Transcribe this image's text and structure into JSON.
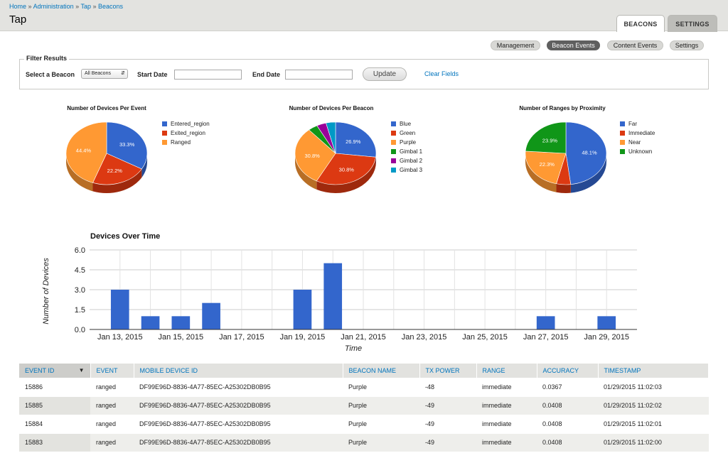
{
  "breadcrumb": {
    "items": [
      "Home",
      "Administration",
      "Tap",
      "Beacons"
    ],
    "sep": "»"
  },
  "page_title": "Tap",
  "tabs": [
    {
      "label": "BEACONS",
      "active": true
    },
    {
      "label": "SETTINGS",
      "active": false
    }
  ],
  "subnav": [
    {
      "label": "Management",
      "active": false
    },
    {
      "label": "Beacon Events",
      "active": true
    },
    {
      "label": "Content Events",
      "active": false
    },
    {
      "label": "Settings",
      "active": false
    }
  ],
  "filter": {
    "legend": "Filter Results",
    "beacon_label": "Select a Beacon",
    "beacon_value": "All Beacons",
    "start_label": "Start Date",
    "end_label": "End Date",
    "update_label": "Update",
    "clear_label": "Clear Fields"
  },
  "chart_data": [
    {
      "type": "pie",
      "title": "Number of Devices Per Event",
      "slices": [
        {
          "label": "Entered_region",
          "value": 33.3,
          "display": "33.3%",
          "color": "#3366cc"
        },
        {
          "label": "Exited_region",
          "value": 22.2,
          "display": "22.2%",
          "color": "#dc3912"
        },
        {
          "label": "Ranged",
          "value": 44.4,
          "display": "44.4%",
          "color": "#ff9933"
        }
      ]
    },
    {
      "type": "pie",
      "title": "Number of Devices Per Beacon",
      "slices": [
        {
          "label": "Blue",
          "value": 26.9,
          "display": "26.9%",
          "color": "#3366cc"
        },
        {
          "label": "Green",
          "value": 30.8,
          "display": "30.8%",
          "color": "#dc3912"
        },
        {
          "label": "Purple",
          "value": 30.8,
          "display": "30.8%",
          "color": "#ff9933"
        },
        {
          "label": "Gimbal 1",
          "value": 3.8,
          "display": "",
          "color": "#109618"
        },
        {
          "label": "Gimbal 2",
          "value": 3.8,
          "display": "",
          "color": "#990099"
        },
        {
          "label": "Gimbal 3",
          "value": 3.8,
          "display": "",
          "color": "#0099c6"
        }
      ]
    },
    {
      "type": "pie",
      "title": "Number of Ranges by Proximity",
      "slices": [
        {
          "label": "Far",
          "value": 48.1,
          "display": "48.1%",
          "color": "#3366cc"
        },
        {
          "label": "Immediate",
          "value": 5.7,
          "display": "",
          "color": "#dc3912"
        },
        {
          "label": "Near",
          "value": 22.3,
          "display": "22.3%",
          "color": "#ff9933"
        },
        {
          "label": "Unknown",
          "value": 23.9,
          "display": "23.9%",
          "color": "#109618"
        }
      ]
    },
    {
      "type": "bar",
      "title": "Devices Over Time",
      "xlabel": "Time",
      "ylabel": "Number of Devices",
      "ylim": [
        0,
        6
      ],
      "yticks": [
        "0.0",
        "1.5",
        "3.0",
        "4.5",
        "6.0"
      ],
      "xticks": [
        "Jan 13, 2015",
        "Jan 15, 2015",
        "Jan 17, 2015",
        "Jan 19, 2015",
        "Jan 21, 2015",
        "Jan 23, 2015",
        "Jan 25, 2015",
        "Jan 27, 2015",
        "Jan 29, 2015"
      ],
      "x_start": "2015-01-13",
      "x_end": "2015-01-29",
      "color": "#3366cc",
      "series": [
        {
          "x": [
            "2015-01-13",
            "2015-01-14",
            "2015-01-15",
            "2015-01-16",
            "2015-01-19",
            "2015-01-20",
            "2015-01-27",
            "2015-01-29"
          ],
          "values": [
            3,
            1,
            1,
            2,
            3,
            5,
            1,
            1
          ]
        }
      ]
    }
  ],
  "table": {
    "columns": [
      "EVENT ID",
      "EVENT",
      "MOBILE DEVICE ID",
      "BEACON NAME",
      "TX POWER",
      "RANGE",
      "ACCURACY",
      "TIMESTAMP"
    ],
    "rows": [
      [
        "15886",
        "ranged",
        "DF99E96D-8836-4A77-85EC-A25302DB0B95",
        "Purple",
        "-48",
        "immediate",
        "0.0367",
        "01/29/2015 11:02:03"
      ],
      [
        "15885",
        "ranged",
        "DF99E96D-8836-4A77-85EC-A25302DB0B95",
        "Purple",
        "-49",
        "immediate",
        "0.0408",
        "01/29/2015 11:02:02"
      ],
      [
        "15884",
        "ranged",
        "DF99E96D-8836-4A77-85EC-A25302DB0B95",
        "Purple",
        "-49",
        "immediate",
        "0.0408",
        "01/29/2015 11:02:01"
      ],
      [
        "15883",
        "ranged",
        "DF99E96D-8836-4A77-85EC-A25302DB0B95",
        "Purple",
        "-49",
        "immediate",
        "0.0408",
        "01/29/2015 11:02:00"
      ]
    ]
  }
}
